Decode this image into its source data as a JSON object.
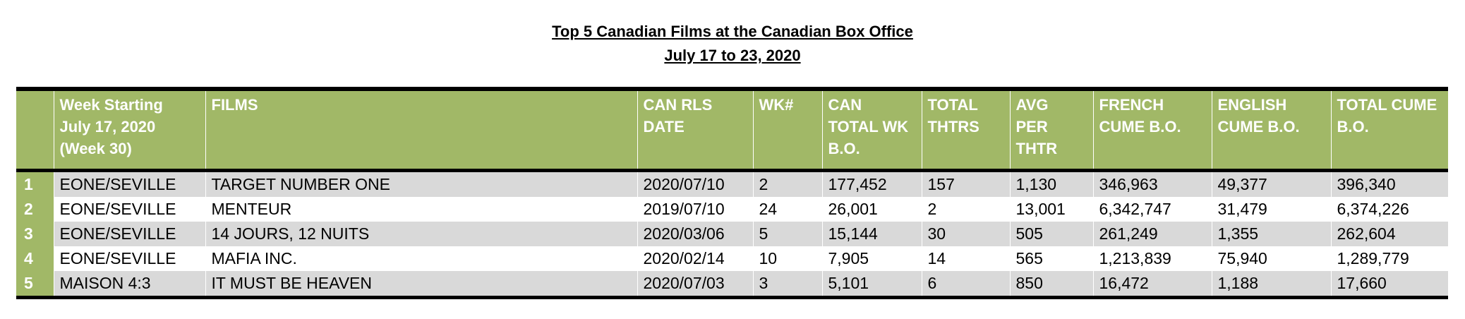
{
  "title": "Top 5 Canadian Films at the Canadian Box Office",
  "subtitle": "July 17 to 23, 2020",
  "headers": {
    "rank": "",
    "week": [
      "Week Starting",
      "July 17, 2020",
      "(Week  30)"
    ],
    "films": "FILMS",
    "rls_date": [
      "CAN RLS",
      "DATE"
    ],
    "wk": "WK#",
    "total_wk_bo": [
      "CAN",
      "TOTAL WK",
      "B.O."
    ],
    "total_thtrs": [
      "TOTAL",
      "THTRS"
    ],
    "avg_per_thtr": [
      "AVG",
      "PER",
      "THTR"
    ],
    "french_cume": [
      "FRENCH",
      "CUME B.O."
    ],
    "english_cume": [
      "ENGLISH",
      "CUME B.O."
    ],
    "total_cume": [
      "TOTAL CUME",
      "B.O."
    ]
  },
  "rows": [
    {
      "rank": "1",
      "distributor": "EONE/SEVILLE",
      "film": "TARGET NUMBER ONE",
      "rls_date": "2020/07/10",
      "wk": "2",
      "total_wk_bo": "177,452",
      "total_thtrs": "157",
      "avg_per_thtr": "1,130",
      "french_cume": "346,963",
      "english_cume": "49,377",
      "total_cume": "396,340"
    },
    {
      "rank": "2",
      "distributor": "EONE/SEVILLE",
      "film": "MENTEUR",
      "rls_date": "2019/07/10",
      "wk": "24",
      "total_wk_bo": "26,001",
      "total_thtrs": "2",
      "avg_per_thtr": "13,001",
      "french_cume": "6,342,747",
      "english_cume": "31,479",
      "total_cume": "6,374,226"
    },
    {
      "rank": "3",
      "distributor": "EONE/SEVILLE",
      "film": "14 JOURS, 12 NUITS",
      "rls_date": "2020/03/06",
      "wk": "5",
      "total_wk_bo": "15,144",
      "total_thtrs": "30",
      "avg_per_thtr": "505",
      "french_cume": "261,249",
      "english_cume": "1,355",
      "total_cume": "262,604"
    },
    {
      "rank": "4",
      "distributor": "EONE/SEVILLE",
      "film": "MAFIA INC.",
      "rls_date": "2020/02/14",
      "wk": "10",
      "total_wk_bo": "7,905",
      "total_thtrs": "14",
      "avg_per_thtr": "565",
      "french_cume": "1,213,839",
      "english_cume": "75,940",
      "total_cume": "1,289,779"
    },
    {
      "rank": "5",
      "distributor": "MAISON 4:3",
      "film": "IT MUST BE HEAVEN",
      "rls_date": "2020/07/03",
      "wk": "3",
      "total_wk_bo": "5,101",
      "total_thtrs": "6",
      "avg_per_thtr": "850",
      "french_cume": "16,472",
      "english_cume": "1,188",
      "total_cume": "17,660"
    }
  ],
  "colors": {
    "header_bg": "#a1b867",
    "row_shade": "#d9d9d9",
    "header_text": "#ffffff"
  }
}
